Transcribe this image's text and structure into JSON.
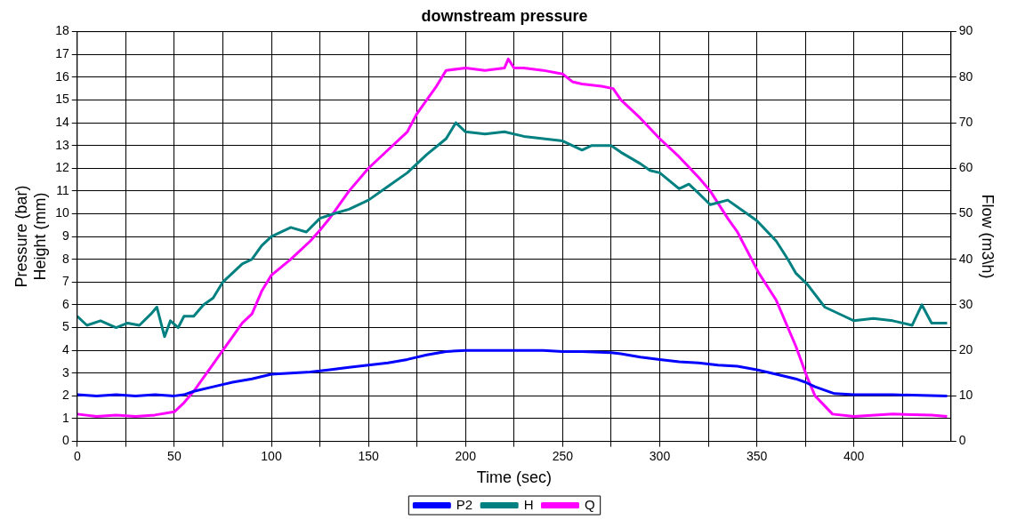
{
  "chart_data": {
    "type": "line",
    "title": "downstream pressure",
    "xlabel": "Time (sec)",
    "ylabel": "Pressure (bar)\nHeight (mm)",
    "y2label": "Flow (m3\\h)",
    "xlim": [
      0,
      450
    ],
    "xticks": [
      0,
      {
        "value": 25,
        "label": null
      },
      50,
      {
        "value": 75,
        "label": null
      },
      100,
      {
        "value": 125,
        "label": null
      },
      150,
      {
        "value": 175,
        "label": null
      },
      200,
      {
        "value": 225,
        "label": null
      },
      250,
      {
        "value": 275,
        "label": null
      },
      300,
      {
        "value": 325,
        "label": null
      },
      350,
      {
        "value": 375,
        "label": null
      },
      400,
      {
        "value": 425,
        "label": null
      }
    ],
    "ylim": [
      0,
      18
    ],
    "yticks": [
      0,
      1,
      2,
      3,
      4,
      5,
      6,
      7,
      8,
      9,
      10,
      11,
      12,
      13,
      14,
      15,
      16,
      17,
      18
    ],
    "y2lim": [
      0,
      90
    ],
    "y2ticks": [
      0,
      10,
      20,
      30,
      40,
      50,
      60,
      70,
      80,
      90
    ],
    "grid": true,
    "legend": "bottom",
    "marker": "none",
    "line_style": "solid",
    "series": [
      {
        "name": "P2",
        "color": "#0000ff",
        "x": [
          0,
          10,
          20,
          30,
          40,
          50,
          55,
          60,
          70,
          80,
          90,
          100,
          110,
          120,
          130,
          140,
          150,
          160,
          170,
          180,
          190,
          200,
          220,
          240,
          250,
          260,
          275,
          280,
          290,
          300,
          310,
          320,
          330,
          340,
          350,
          360,
          370,
          375,
          380,
          390,
          400,
          420,
          448
        ],
        "values": [
          2.05,
          2.0,
          2.05,
          2.0,
          2.05,
          2.0,
          2.05,
          2.2,
          2.4,
          2.6,
          2.75,
          2.95,
          3.0,
          3.05,
          3.15,
          3.25,
          3.35,
          3.45,
          3.6,
          3.8,
          3.95,
          4.0,
          4.0,
          4.0,
          3.95,
          3.95,
          3.9,
          3.85,
          3.7,
          3.6,
          3.5,
          3.45,
          3.35,
          3.3,
          3.15,
          2.95,
          2.75,
          2.6,
          2.4,
          2.1,
          2.05,
          2.05,
          2.0
        ]
      },
      {
        "name": "H",
        "color": "#008080",
        "x": [
          0,
          5,
          12,
          20,
          26,
          32,
          38,
          41,
          45,
          48,
          52,
          55,
          60,
          65,
          70,
          75,
          80,
          85,
          90,
          95,
          100,
          110,
          118,
          125,
          132,
          140,
          150,
          160,
          170,
          180,
          190,
          195,
          200,
          210,
          220,
          230,
          240,
          250,
          260,
          265,
          275,
          280,
          290,
          295,
          300,
          310,
          315,
          320,
          326,
          335,
          345,
          350,
          360,
          366,
          370,
          376,
          385,
          395,
          400,
          410,
          420,
          430,
          435,
          440,
          448
        ],
        "values": [
          5.5,
          5.1,
          5.3,
          5.0,
          5.2,
          5.1,
          5.6,
          5.9,
          4.6,
          5.3,
          5.0,
          5.5,
          5.5,
          6.0,
          6.3,
          7.0,
          7.4,
          7.8,
          8.0,
          8.6,
          9.0,
          9.4,
          9.2,
          9.8,
          10.0,
          10.2,
          10.6,
          11.2,
          11.8,
          12.6,
          13.3,
          14.0,
          13.6,
          13.5,
          13.6,
          13.4,
          13.3,
          13.2,
          12.8,
          13.0,
          13.0,
          12.7,
          12.2,
          11.9,
          11.8,
          11.1,
          11.3,
          10.9,
          10.4,
          10.6,
          10.0,
          9.7,
          8.8,
          8.0,
          7.4,
          6.9,
          5.9,
          5.5,
          5.3,
          5.4,
          5.3,
          5.1,
          6.0,
          5.2,
          5.2
        ]
      },
      {
        "name": "Q",
        "color": "#ff00ff",
        "axis": "y2",
        "x": [
          0,
          10,
          20,
          30,
          40,
          50,
          55,
          60,
          65,
          70,
          75,
          80,
          85,
          90,
          95,
          100,
          110,
          120,
          125,
          130,
          140,
          150,
          160,
          170,
          175,
          180,
          185,
          190,
          200,
          210,
          220,
          222,
          225,
          230,
          240,
          250,
          255,
          260,
          270,
          276,
          280,
          290,
          300,
          310,
          320,
          326,
          335,
          340,
          351,
          360,
          370,
          376,
          380,
          389,
          400,
          420,
          440,
          448
        ],
        "values": [
          6,
          5.5,
          5.8,
          5.5,
          5.8,
          6.5,
          8.5,
          11,
          14,
          17,
          20,
          23,
          26,
          28,
          33,
          36.5,
          40,
          44,
          46.4,
          49,
          55,
          60,
          64,
          68,
          72,
          75,
          78,
          81.5,
          82,
          81.5,
          82,
          84,
          82,
          82,
          81.5,
          80.7,
          79,
          78.5,
          78,
          77.5,
          75,
          71,
          66.5,
          62.5,
          58,
          55,
          49,
          46,
          37,
          31,
          21,
          14,
          10,
          6,
          5.5,
          6,
          5.8,
          5.5
        ]
      }
    ]
  }
}
